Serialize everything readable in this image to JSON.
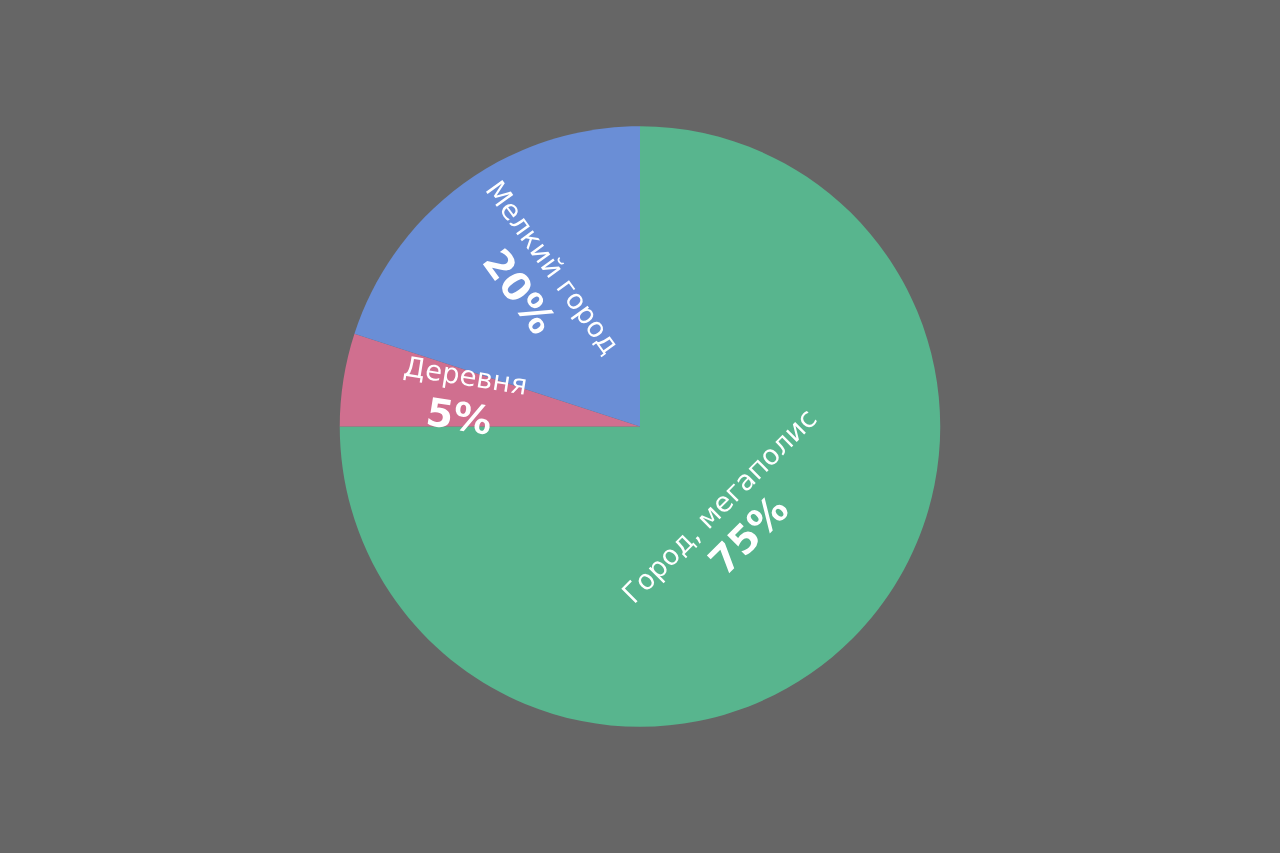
{
  "chart_data": {
    "type": "pie",
    "categories": [
      "Город, мегаполис",
      "Деревня",
      "Мелкий город"
    ],
    "values": [
      75,
      5,
      20
    ],
    "colors": [
      "#58b58e",
      "#d06f8f",
      "#6a8ed6"
    ],
    "value_labels": [
      "75%",
      "5%",
      "20%"
    ]
  }
}
